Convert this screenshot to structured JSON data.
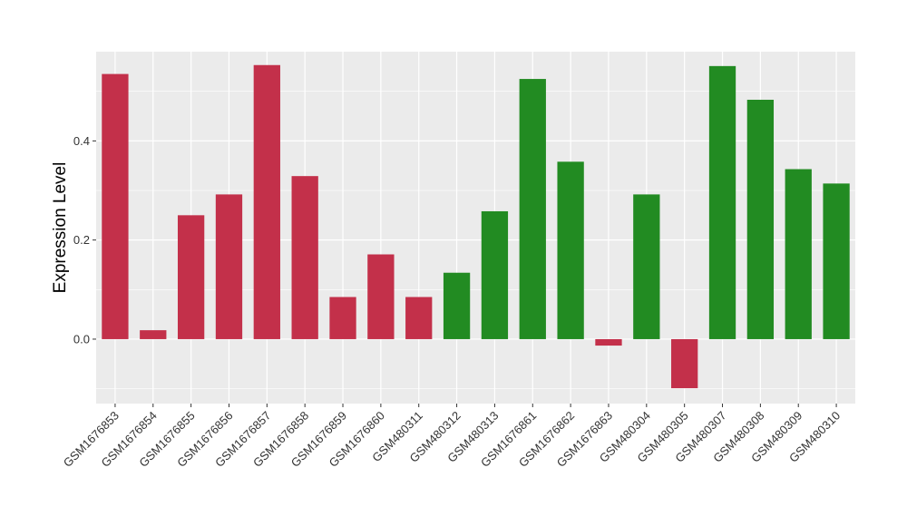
{
  "chart_data": {
    "type": "bar",
    "title": "",
    "xlabel": "",
    "ylabel": "Expression Level",
    "ylim": [
      -0.13,
      0.58
    ],
    "yticks": [
      0.0,
      0.2,
      0.4
    ],
    "ytick_labels": [
      "0.0",
      "0.2",
      "0.4"
    ],
    "grid": true,
    "legend": "none",
    "categories": [
      "GSM1676853",
      "GSM1676854",
      "GSM1676855",
      "GSM1676856",
      "GSM1676857",
      "GSM1676858",
      "GSM1676859",
      "GSM1676860",
      "GSM480311",
      "GSM480312",
      "GSM480313",
      "GSM1676861",
      "GSM1676862",
      "GSM1676863",
      "GSM480304",
      "GSM480305",
      "GSM480307",
      "GSM480308",
      "GSM480309",
      "GSM480310"
    ],
    "values": [
      0.535,
      0.018,
      0.25,
      0.292,
      0.553,
      0.329,
      0.085,
      0.171,
      0.085,
      0.134,
      0.258,
      0.525,
      0.358,
      -0.013,
      0.292,
      -0.099,
      0.551,
      0.483,
      0.343,
      0.314
    ],
    "colors": {
      "red": "#C3304A",
      "green": "#228B22",
      "panel": "#EBEBEB",
      "grid": "#FFFFFF"
    },
    "bar_colors": [
      "red",
      "red",
      "red",
      "red",
      "red",
      "red",
      "red",
      "red",
      "red",
      "green",
      "green",
      "green",
      "green",
      "red",
      "green",
      "red",
      "green",
      "green",
      "green",
      "green"
    ]
  }
}
